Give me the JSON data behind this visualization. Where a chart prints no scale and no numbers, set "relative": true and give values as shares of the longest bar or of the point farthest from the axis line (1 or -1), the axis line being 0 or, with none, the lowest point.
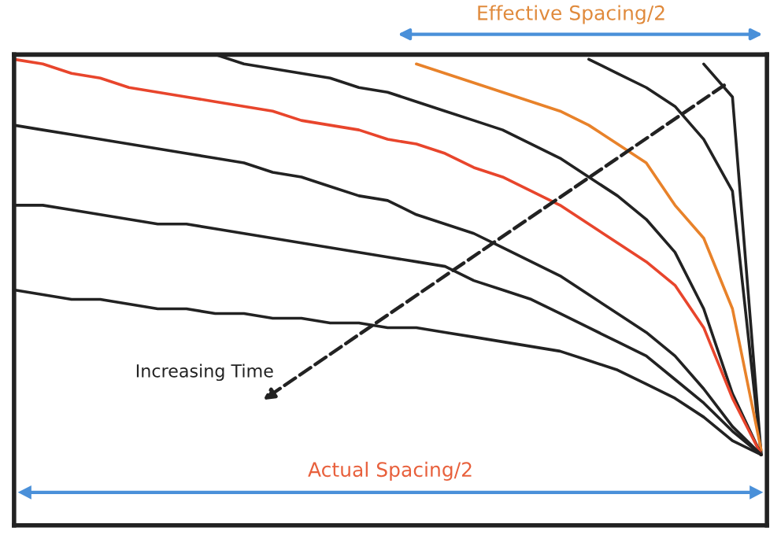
{
  "chart_data": {
    "type": "line",
    "relative": true,
    "legend": false,
    "marker": "none",
    "line_style": "solid",
    "categories": [
      null,
      null,
      null,
      null,
      null,
      null,
      null,
      null,
      null,
      null,
      null,
      null,
      null,
      null,
      null,
      null,
      null,
      null,
      null,
      null,
      null,
      null,
      null,
      null,
      null,
      null,
      null
    ],
    "series": [
      {
        "color": "#222222",
        "values": [
          null,
          null,
          null,
          null,
          null,
          null,
          null,
          null,
          null,
          null,
          null,
          null,
          null,
          null,
          null,
          null,
          null,
          null,
          null,
          null,
          null,
          null,
          null,
          null,
          0.98,
          0.91,
          0.15
        ]
      },
      {
        "color": "#222222",
        "values": [
          null,
          null,
          null,
          null,
          null,
          null,
          null,
          null,
          null,
          null,
          null,
          null,
          null,
          null,
          null,
          null,
          null,
          null,
          null,
          null,
          0.99,
          0.96,
          0.93,
          0.89,
          0.82,
          0.71,
          0.15
        ]
      },
      {
        "color": "#e8822a",
        "values": [
          null,
          null,
          null,
          null,
          null,
          null,
          null,
          null,
          null,
          null,
          null,
          null,
          null,
          null,
          0.98,
          0.96,
          0.94,
          0.92,
          0.9,
          0.88,
          0.85,
          0.81,
          0.77,
          0.68,
          0.61,
          0.46,
          0.16
        ]
      },
      {
        "color": "#222222",
        "values": [
          null,
          null,
          null,
          null,
          null,
          null,
          null,
          1.0,
          0.98,
          0.97,
          0.96,
          0.95,
          0.93,
          0.92,
          0.9,
          0.88,
          0.86,
          0.84,
          0.81,
          0.78,
          0.74,
          0.7,
          0.65,
          0.58,
          0.46,
          0.28,
          0.15
        ]
      },
      {
        "color": "#e8452c",
        "values": [
          0.99,
          0.98,
          0.96,
          0.95,
          0.93,
          0.92,
          0.91,
          0.9,
          0.89,
          0.88,
          0.86,
          0.85,
          0.84,
          0.82,
          0.81,
          0.79,
          0.76,
          0.74,
          0.71,
          0.68,
          0.64,
          0.6,
          0.56,
          0.51,
          0.42,
          0.27,
          0.15
        ]
      },
      {
        "color": "#222222",
        "values": [
          0.85,
          0.84,
          0.83,
          0.82,
          0.81,
          0.8,
          0.79,
          0.78,
          0.77,
          0.75,
          0.74,
          0.72,
          0.7,
          0.69,
          0.66,
          0.64,
          0.62,
          0.59,
          0.56,
          0.53,
          0.49,
          0.45,
          0.41,
          0.36,
          0.29,
          0.21,
          0.15
        ]
      },
      {
        "color": "#222222",
        "values": [
          0.68,
          0.68,
          0.67,
          0.66,
          0.65,
          0.64,
          0.64,
          0.63,
          0.62,
          0.61,
          0.6,
          0.59,
          0.58,
          0.57,
          0.56,
          0.55,
          0.52,
          0.5,
          0.48,
          0.45,
          0.42,
          0.39,
          0.36,
          0.31,
          0.26,
          0.2,
          0.15
        ]
      },
      {
        "color": "#222222",
        "values": [
          0.5,
          0.49,
          0.48,
          0.48,
          0.47,
          0.46,
          0.46,
          0.45,
          0.45,
          0.44,
          0.44,
          0.43,
          0.43,
          0.42,
          0.42,
          0.41,
          0.4,
          0.39,
          0.38,
          0.37,
          0.35,
          0.33,
          0.3,
          0.27,
          0.23,
          0.18,
          0.15
        ]
      }
    ],
    "annotations": [
      "Effective Spacing/2",
      "Actual Spacing/2",
      "Increasing Time"
    ]
  }
}
